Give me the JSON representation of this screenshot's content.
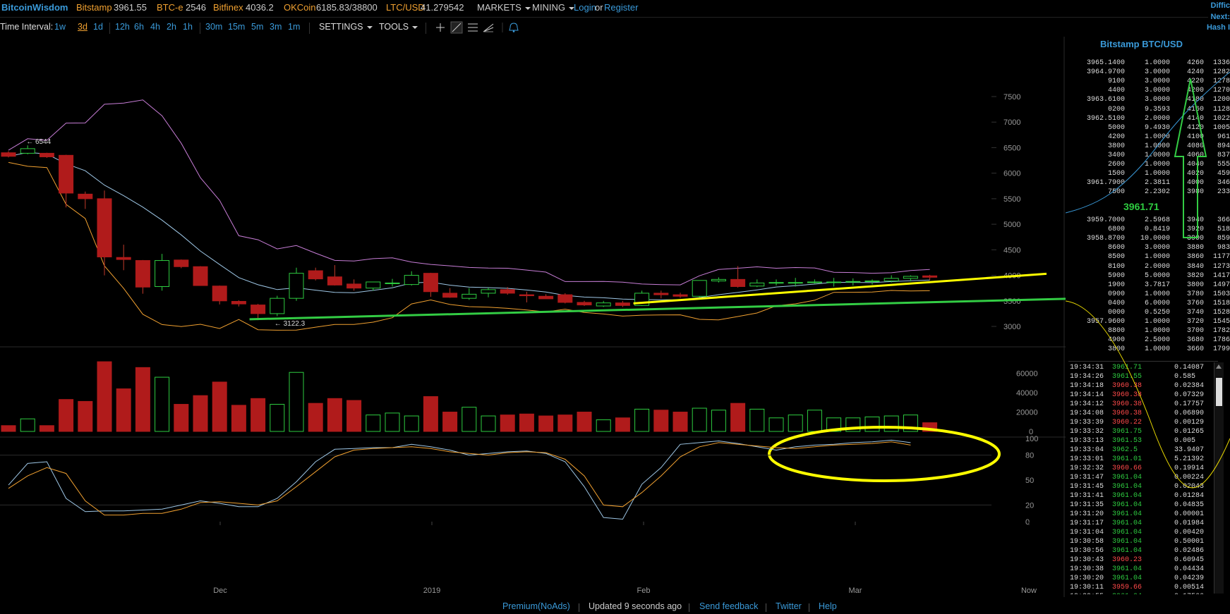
{
  "header": {
    "logo": "BitcoinWisdom",
    "markets": [
      {
        "name": "Bitstamp",
        "value": "3961.55"
      },
      {
        "name": "BTC-e",
        "value": "2546"
      },
      {
        "name": "Bitfinex",
        "value": "4036.2"
      },
      {
        "name": "OKCoin",
        "value": "6185.83/38800"
      },
      {
        "name": "LTC/USD",
        "value": "41.279542"
      }
    ],
    "menu_markets": "MARKETS",
    "menu_mining": "MINING",
    "login": "Login",
    "or": "or",
    "register": "Register",
    "corner": [
      "Diffic",
      "Next:",
      "Hash I"
    ]
  },
  "toolbar": {
    "label": "Time Interval:",
    "intervals": [
      "1w",
      "3d",
      "1d",
      "12h",
      "6h",
      "4h",
      "2h",
      "1h",
      "30m",
      "15m",
      "5m",
      "3m",
      "1m"
    ],
    "selected": "3d",
    "settings": "SETTINGS",
    "tools": "TOOLS"
  },
  "orderbook": {
    "title": "Bitstamp BTC/USD",
    "last_price": "3961.71",
    "asks": [
      [
        "3965.1400",
        "1.0000",
        "4260",
        "1336"
      ],
      [
        "3964.9700",
        "3.0000",
        "4240",
        "1282"
      ],
      [
        "9100",
        "3.0000",
        "4220",
        "1278"
      ],
      [
        "4400",
        "3.0000",
        "4200",
        "1270"
      ],
      [
        "3963.6100",
        "3.0000",
        "4180",
        "1200"
      ],
      [
        "0200",
        "9.3593",
        "4160",
        "1128"
      ],
      [
        "3962.5100",
        "2.0000",
        "4140",
        "1022"
      ],
      [
        "5000",
        "9.4930",
        "4120",
        "1005"
      ],
      [
        "4200",
        "1.0000",
        "4100",
        "961"
      ],
      [
        "3800",
        "1.0000",
        "4080",
        "894"
      ],
      [
        "3400",
        "1.0000",
        "4060",
        "837"
      ],
      [
        "2600",
        "1.0000",
        "4040",
        "555"
      ],
      [
        "1500",
        "1.0000",
        "4020",
        "459"
      ],
      [
        "3961.7900",
        "2.3811",
        "4000",
        "346"
      ],
      [
        "7500",
        "2.2302",
        "3980",
        "233"
      ]
    ],
    "bids": [
      [
        "3959.7000",
        "2.5968",
        "3940",
        "366"
      ],
      [
        "6800",
        "0.8419",
        "3920",
        "518"
      ],
      [
        "3958.8700",
        "10.0000",
        "3900",
        "859"
      ],
      [
        "8600",
        "3.0000",
        "3880",
        "983"
      ],
      [
        "8500",
        "1.0000",
        "3860",
        "1177"
      ],
      [
        "8100",
        "2.0000",
        "3840",
        "1273"
      ],
      [
        "5900",
        "5.0000",
        "3820",
        "1417"
      ],
      [
        "1900",
        "3.7817",
        "3800",
        "1497"
      ],
      [
        "0900",
        "1.0000",
        "3780",
        "1503"
      ],
      [
        "0400",
        "6.0000",
        "3760",
        "1518"
      ],
      [
        "0000",
        "0.5250",
        "3740",
        "1528"
      ],
      [
        "3957.9600",
        "1.0000",
        "3720",
        "1545"
      ],
      [
        "8800",
        "1.0000",
        "3700",
        "1782"
      ],
      [
        "4900",
        "2.5000",
        "3680",
        "1786"
      ],
      [
        "3800",
        "1.0000",
        "3660",
        "1799"
      ]
    ]
  },
  "trades": [
    [
      "19:34:31",
      "3961.71",
      "0.14087",
      "g"
    ],
    [
      "19:34:26",
      "3961.55",
      "0.585",
      "g"
    ],
    [
      "19:34:18",
      "3960.38",
      "0.02384",
      "r"
    ],
    [
      "19:34:14",
      "3960.38",
      "0.07329",
      "r"
    ],
    [
      "19:34:12",
      "3960.38",
      "0.17757",
      "r"
    ],
    [
      "19:34:08",
      "3960.38",
      "0.06890",
      "r"
    ],
    [
      "19:33:39",
      "3960.22",
      "0.00129",
      "r"
    ],
    [
      "19:33:32",
      "3961.75",
      "0.01265",
      "g"
    ],
    [
      "19:33:13",
      "3961.53",
      "0.005",
      "g"
    ],
    [
      "19:33:04",
      "3962.5",
      "33.9407",
      "g"
    ],
    [
      "19:33:01",
      "3961.01",
      "5.21392",
      "g"
    ],
    [
      "19:32:32",
      "3960.66",
      "0.19914",
      "r"
    ],
    [
      "19:31:47",
      "3961.04",
      "0.00224",
      "g"
    ],
    [
      "19:31:45",
      "3961.04",
      "0.02043",
      "g"
    ],
    [
      "19:31:41",
      "3961.04",
      "0.01284",
      "g"
    ],
    [
      "19:31:35",
      "3961.04",
      "0.04835",
      "g"
    ],
    [
      "19:31:20",
      "3961.04",
      "0.00001",
      "g"
    ],
    [
      "19:31:17",
      "3961.04",
      "0.01984",
      "g"
    ],
    [
      "19:31:04",
      "3961.04",
      "0.00420",
      "g"
    ],
    [
      "19:30:58",
      "3961.04",
      "0.50001",
      "g"
    ],
    [
      "19:30:56",
      "3961.04",
      "0.02486",
      "g"
    ],
    [
      "19:30:43",
      "3960.23",
      "0.60945",
      "r"
    ],
    [
      "19:30:38",
      "3961.04",
      "0.04434",
      "g"
    ],
    [
      "19:30:20",
      "3961.04",
      "0.04239",
      "g"
    ],
    [
      "19:30:11",
      "3959.66",
      "0.00514",
      "r"
    ],
    [
      "19:29:55",
      "3961.04",
      "0.17566",
      "g"
    ]
  ],
  "footer": {
    "items": [
      "Premium(NoAds)",
      "Updated 9 seconds ago",
      "Send feedback",
      "Twitter",
      "Help"
    ]
  },
  "colors": {
    "up": "#2ecc40",
    "down": "#b01b1b",
    "bb_upper": "#c77dd6",
    "bb_mid": "#9ec7e6",
    "bb_lower": "#f0a030",
    "annotation": "#ffff00",
    "trendline": "#33cc44"
  },
  "chart_data": [
    {
      "type": "candlestick",
      "title": "",
      "x_ticks": [
        "Dec",
        "2019",
        "Feb",
        "Mar",
        "Now"
      ],
      "y_ticks": [
        3000,
        3500,
        4000,
        4500,
        5000,
        5500,
        6000,
        6500,
        7000,
        7500
      ],
      "ylim": [
        2600,
        7900
      ],
      "annotations": [
        "← 6544",
        "← 3122.3"
      ],
      "candles": [
        [
          6400,
          6430,
          6310,
          6330
        ],
        [
          6390,
          6544,
          6370,
          6480
        ],
        [
          6390,
          6400,
          6300,
          6320
        ],
        [
          6350,
          6360,
          5330,
          5610
        ],
        [
          5590,
          5640,
          5300,
          5500
        ],
        [
          5500,
          5660,
          4000,
          4360
        ],
        [
          4350,
          4600,
          4100,
          4310
        ],
        [
          4290,
          4300,
          3640,
          3770
        ],
        [
          3780,
          4420,
          3700,
          4290
        ],
        [
          4300,
          4310,
          4140,
          4170
        ],
        [
          4170,
          4180,
          3800,
          3800
        ],
        [
          3790,
          3800,
          3430,
          3500
        ],
        [
          3490,
          3510,
          3390,
          3440
        ],
        [
          3420,
          3440,
          3122.3,
          3250
        ],
        [
          3250,
          3600,
          3200,
          3550
        ],
        [
          3550,
          4150,
          3500,
          4040
        ],
        [
          4090,
          4150,
          3900,
          3930
        ],
        [
          3970,
          4200,
          3800,
          3810
        ],
        [
          3830,
          3920,
          3700,
          3750
        ],
        [
          3750,
          3870,
          3700,
          3870
        ],
        [
          3850,
          3930,
          3780,
          3850
        ],
        [
          3820,
          4080,
          3800,
          4000
        ],
        [
          4040,
          4050,
          3580,
          3680
        ],
        [
          3650,
          3750,
          3560,
          3570
        ],
        [
          3550,
          3750,
          3520,
          3630
        ],
        [
          3650,
          3760,
          3570,
          3720
        ],
        [
          3720,
          3770,
          3620,
          3650
        ],
        [
          3620,
          3680,
          3470,
          3600
        ],
        [
          3590,
          3630,
          3540,
          3540
        ],
        [
          3620,
          3650,
          3450,
          3470
        ],
        [
          3470,
          3500,
          3400,
          3420
        ],
        [
          3400,
          3500,
          3380,
          3460
        ],
        [
          3460,
          3500,
          3380,
          3410
        ],
        [
          3410,
          3700,
          3400,
          3650
        ],
        [
          3650,
          3700,
          3550,
          3620
        ],
        [
          3620,
          3660,
          3560,
          3590
        ],
        [
          3590,
          3900,
          3570,
          3900
        ],
        [
          3890,
          3960,
          3860,
          3920
        ],
        [
          3920,
          4180,
          3760,
          3780
        ],
        [
          3790,
          3920,
          3770,
          3850
        ],
        [
          3850,
          3920,
          3800,
          3860
        ],
        [
          3860,
          3950,
          3780,
          3860
        ],
        [
          3860,
          3920,
          3840,
          3870
        ],
        [
          3870,
          3950,
          3780,
          3870
        ],
        [
          3870,
          3940,
          3800,
          3880
        ],
        [
          3880,
          3920,
          3820,
          3890
        ],
        [
          3890,
          4000,
          3860,
          3940
        ],
        [
          3940,
          4000,
          3880,
          3980
        ],
        [
          3990,
          4010,
          3910,
          3961.71
        ]
      ]
    },
    {
      "type": "bar",
      "title": "",
      "y_ticks": [
        0,
        20000,
        40000,
        60000
      ],
      "ylim": [
        0,
        75000
      ],
      "values": [
        6000,
        13000,
        6000,
        33000,
        31000,
        72000,
        44000,
        66000,
        56000,
        28000,
        37000,
        51000,
        27000,
        34000,
        28000,
        61000,
        29000,
        34000,
        32000,
        17000,
        19000,
        16000,
        36000,
        20000,
        25000,
        16000,
        17000,
        18000,
        16000,
        17000,
        20000,
        12000,
        14000,
        23000,
        22000,
        20000,
        24000,
        22000,
        29000,
        23000,
        14000,
        17000,
        22000,
        14000,
        14000,
        15000,
        16000,
        17000,
        9000
      ]
    },
    {
      "type": "line",
      "title": "",
      "y_ticks": [
        0,
        20,
        50,
        80,
        100
      ],
      "ylim": [
        0,
        100
      ],
      "series": [
        {
          "values": [
            44,
            70,
            72,
            28,
            12,
            13,
            13,
            14,
            15,
            20,
            25,
            22,
            18,
            18,
            28,
            48,
            72,
            87,
            88,
            89,
            89,
            93,
            90,
            86,
            80,
            82,
            84,
            85,
            82,
            72,
            42,
            5,
            3,
            45,
            65,
            93,
            95,
            97,
            94,
            90,
            86,
            90,
            92,
            93,
            95,
            96,
            98,
            95
          ]
        },
        {
          "values": [
            40,
            55,
            65,
            58,
            25,
            8,
            8,
            10,
            10,
            15,
            23,
            24,
            22,
            20,
            25,
            42,
            60,
            78,
            86,
            88,
            89,
            90,
            88,
            84,
            82,
            80,
            83,
            84,
            83,
            75,
            55,
            20,
            18,
            35,
            55,
            78,
            90,
            95,
            93,
            91,
            89,
            88,
            90,
            92,
            93,
            94,
            96,
            92
          ]
        }
      ]
    }
  ]
}
